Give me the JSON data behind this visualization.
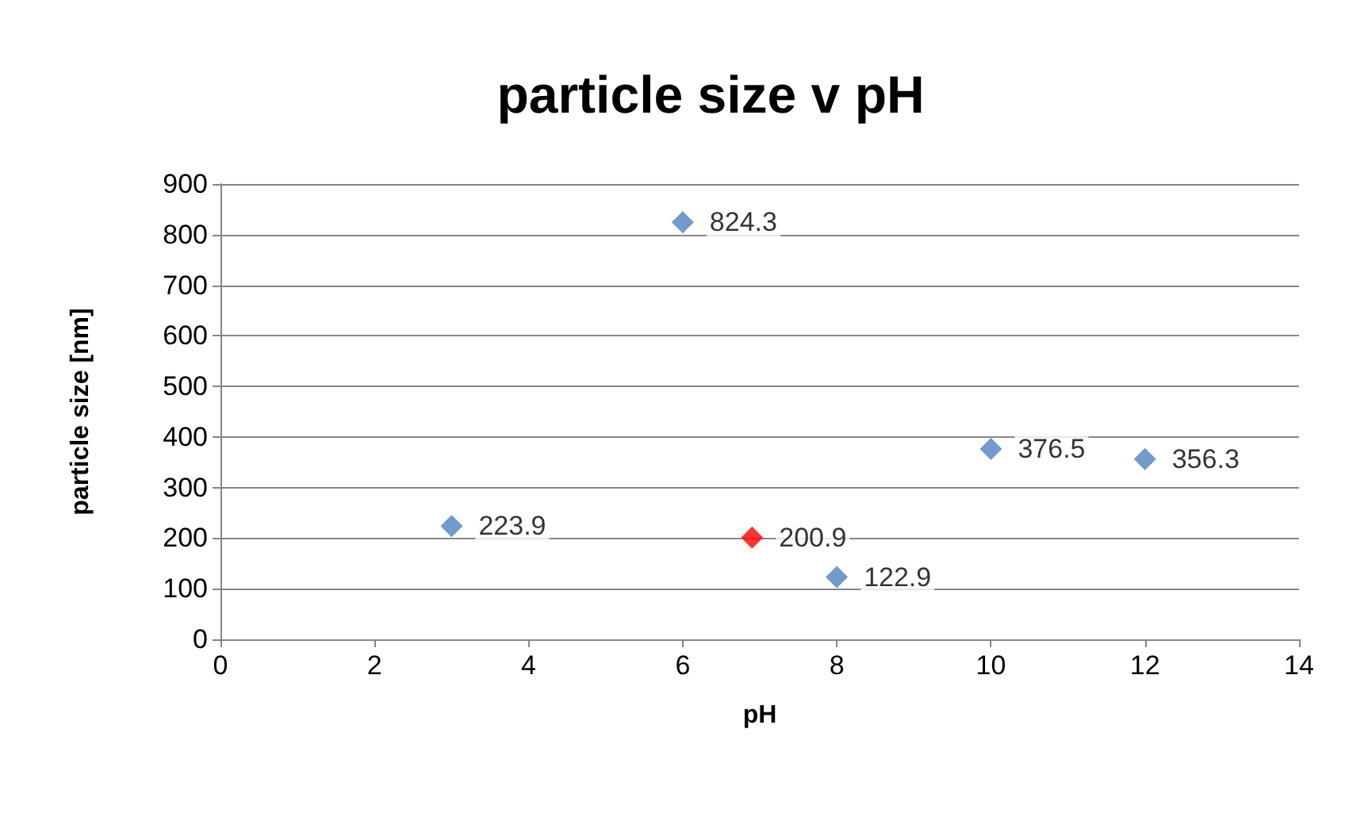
{
  "chart_data": {
    "type": "scatter",
    "title": "particle size v pH",
    "xlabel": "pH",
    "ylabel": "particle size [nm]",
    "x": [
      3,
      6,
      6.9,
      8,
      10,
      12
    ],
    "values": [
      223.9,
      824.3,
      200.9,
      122.9,
      376.5,
      356.3
    ],
    "colors": [
      "#4f81bd",
      "#4f81bd",
      "#ff0000",
      "#4f81bd",
      "#4f81bd",
      "#4f81bd"
    ],
    "xlim": [
      0,
      14
    ],
    "xticks": [
      0,
      2,
      4,
      6,
      8,
      10,
      12,
      14
    ],
    "ylim": [
      0,
      900
    ],
    "yticks": [
      0,
      100,
      200,
      300,
      400,
      500,
      600,
      700,
      800,
      900
    ],
    "grid": "y",
    "marker": "diamond",
    "data_labels": true
  }
}
